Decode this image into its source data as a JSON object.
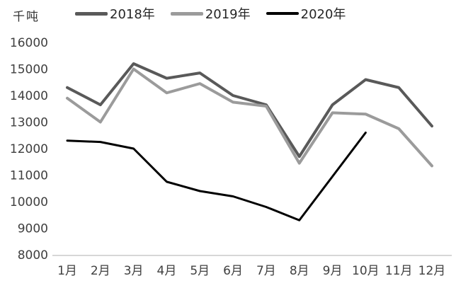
{
  "chart_data": {
    "type": "line",
    "title": "",
    "xlabel": "",
    "ylabel": "千吨",
    "categories": [
      "1月",
      "2月",
      "3月",
      "4月",
      "5月",
      "6月",
      "7月",
      "8月",
      "9月",
      "10月",
      "11月",
      "12月"
    ],
    "series": [
      {
        "name": "2018年",
        "color": "#595959",
        "line_width": 4,
        "values": [
          14300,
          13650,
          15200,
          14650,
          14850,
          14000,
          13650,
          11700,
          13650,
          14600,
          14300,
          12850
        ]
      },
      {
        "name": "2019年",
        "color": "#9b9b9b",
        "line_width": 4,
        "values": [
          13900,
          13000,
          15000,
          14100,
          14450,
          13750,
          13600,
          11450,
          13350,
          13300,
          12750,
          11350
        ]
      },
      {
        "name": "2020年",
        "color": "#000000",
        "line_width": 3,
        "values": [
          12300,
          12250,
          12000,
          10750,
          10400,
          10200,
          9800,
          9300,
          10950,
          12600,
          null,
          null
        ]
      }
    ],
    "ylim": [
      8000,
      16000
    ],
    "ytick_step": 1000,
    "yticks": [
      "8000",
      "9000",
      "10000",
      "11000",
      "12000",
      "13000",
      "14000",
      "15000",
      "16000"
    ],
    "grid": false,
    "legend_position": "top",
    "axis_line_color": "#bfbfbf",
    "text_color": "#3f3f3f",
    "background_color": "#ffffff"
  }
}
